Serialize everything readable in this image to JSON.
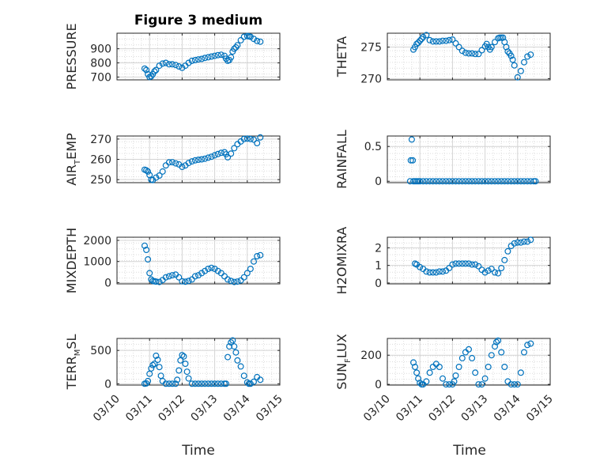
{
  "figure": {
    "title": "Figure 3 medium",
    "marker_color": "#0072bd",
    "xlabel": "Time",
    "x_ticks": [
      "03/10",
      "03/11",
      "03/12",
      "03/13",
      "03/14",
      "03/15"
    ]
  },
  "chart_data": [
    {
      "type": "scatter",
      "ylabel": "PRESSURE",
      "yticks": [
        700,
        800,
        900
      ],
      "ylim": [
        680,
        1010
      ],
      "xlim": [
        10,
        15
      ],
      "grid": true,
      "series": [
        {
          "x": [
            10.85,
            10.9,
            10.95,
            11.0,
            11.05,
            11.1,
            11.15,
            11.2,
            11.3,
            11.4,
            11.5,
            11.6,
            11.7,
            11.8,
            11.9,
            12.0,
            12.1,
            12.2,
            12.3,
            12.4,
            12.5,
            12.6,
            12.7,
            12.8,
            12.9,
            13.0,
            13.1,
            13.2,
            13.3,
            13.35,
            13.4,
            13.45,
            13.5,
            13.55,
            13.6,
            13.65,
            13.7,
            13.8,
            13.9,
            14.0,
            14.05,
            14.1,
            14.2,
            14.3,
            14.4
          ],
          "y": [
            760,
            750,
            720,
            700,
            705,
            720,
            740,
            750,
            780,
            795,
            800,
            790,
            790,
            785,
            775,
            765,
            780,
            800,
            815,
            820,
            825,
            828,
            835,
            840,
            845,
            850,
            855,
            858,
            850,
            830,
            815,
            820,
            840,
            880,
            900,
            910,
            925,
            960,
            985,
            990,
            988,
            985,
            970,
            955,
            950
          ]
        }
      ]
    },
    {
      "type": "scatter",
      "ylabel": "THETA",
      "yticks": [
        270,
        275
      ],
      "ylim": [
        269.8,
        277.2
      ],
      "xlim": [
        10,
        15
      ],
      "grid": true,
      "series": [
        {
          "x": [
            10.8,
            10.85,
            10.9,
            10.95,
            11.0,
            11.05,
            11.1,
            11.2,
            11.3,
            11.4,
            11.5,
            11.6,
            11.7,
            11.8,
            11.9,
            12.0,
            12.1,
            12.2,
            12.3,
            12.4,
            12.5,
            12.6,
            12.7,
            12.8,
            12.9,
            13.0,
            13.05,
            13.1,
            13.15,
            13.2,
            13.3,
            13.4,
            13.45,
            13.5,
            13.55,
            13.6,
            13.65,
            13.7,
            13.75,
            13.8,
            13.85,
            13.9,
            14.0,
            14.1,
            14.2,
            14.3,
            14.4
          ],
          "y": [
            274.6,
            275.0,
            275.5,
            275.7,
            276.0,
            276.3,
            276.6,
            276.9,
            276.1,
            275.9,
            275.9,
            275.9,
            276.0,
            276.0,
            276.1,
            276.2,
            275.6,
            275.0,
            274.4,
            274.1,
            274.0,
            274.0,
            273.9,
            273.9,
            274.5,
            275.1,
            275.5,
            275.0,
            274.6,
            275.0,
            275.8,
            276.4,
            276.5,
            276.5,
            276.5,
            275.8,
            275.0,
            274.3,
            274.0,
            273.6,
            273.0,
            272.1,
            270.2,
            271.2,
            272.6,
            273.5,
            273.8
          ]
        }
      ]
    },
    {
      "type": "scatter",
      "ylabel": "AIR_TEMP",
      "ylabel_main": "AIR",
      "ylabel_sub": "T",
      "ylabel_rest": "EMP",
      "yticks": [
        250,
        260,
        270
      ],
      "ylim": [
        248.5,
        271.5
      ],
      "xlim": [
        10,
        15
      ],
      "grid": true,
      "series": [
        {
          "x": [
            10.85,
            10.9,
            10.95,
            11.0,
            11.05,
            11.1,
            11.2,
            11.3,
            11.4,
            11.5,
            11.6,
            11.7,
            11.8,
            11.9,
            12.0,
            12.1,
            12.2,
            12.3,
            12.4,
            12.5,
            12.6,
            12.7,
            12.8,
            12.9,
            13.0,
            13.1,
            13.2,
            13.3,
            13.35,
            13.4,
            13.5,
            13.6,
            13.7,
            13.8,
            13.9,
            14.0,
            14.1,
            14.2,
            14.3,
            14.4
          ],
          "y": [
            254.9,
            254.6,
            254.0,
            252.3,
            250.0,
            249.8,
            251.0,
            252.0,
            254.0,
            257.0,
            258.5,
            258.6,
            258.0,
            257.5,
            256.3,
            257.0,
            258.2,
            259.0,
            259.5,
            259.8,
            260.0,
            260.3,
            260.8,
            261.3,
            262.0,
            262.6,
            263.2,
            263.5,
            262.5,
            261.0,
            262.8,
            265.5,
            267.5,
            268.8,
            270.0,
            270.2,
            270.0,
            269.7,
            268.0,
            270.8
          ]
        }
      ]
    },
    {
      "type": "scatter",
      "ylabel": "RAINFALL",
      "yticks": [
        0,
        0.5
      ],
      "ytick_labels": [
        "0",
        "0.5"
      ],
      "ylim": [
        -0.02,
        0.65
      ],
      "xlim": [
        10,
        15
      ],
      "grid": true,
      "series": [
        {
          "x": [
            10.7,
            10.72,
            10.75,
            10.78,
            10.8,
            10.85,
            10.9,
            10.95,
            11.0,
            11.1,
            11.2,
            11.3,
            11.4,
            11.5,
            11.6,
            11.7,
            11.8,
            11.9,
            12.0,
            12.1,
            12.2,
            12.3,
            12.4,
            12.5,
            12.6,
            12.7,
            12.8,
            12.9,
            13.0,
            13.1,
            13.2,
            13.3,
            13.4,
            13.5,
            13.6,
            13.7,
            13.8,
            13.9,
            14.0,
            14.1,
            14.2,
            14.3,
            14.4,
            14.5,
            14.55
          ],
          "y": [
            0,
            0.3,
            0.6,
            0.3,
            0,
            0,
            0,
            0,
            0,
            0,
            0,
            0,
            0,
            0,
            0,
            0,
            0,
            0,
            0,
            0,
            0,
            0,
            0,
            0,
            0,
            0,
            0,
            0,
            0,
            0,
            0,
            0,
            0,
            0,
            0,
            0,
            0,
            0,
            0,
            0,
            0,
            0,
            0,
            0,
            0
          ]
        }
      ]
    },
    {
      "type": "scatter",
      "ylabel": "MIXDEPTH",
      "yticks": [
        0,
        1000,
        2000
      ],
      "ylim": [
        -60,
        2150
      ],
      "xlim": [
        10,
        15
      ],
      "grid": true,
      "series": [
        {
          "x": [
            10.85,
            10.9,
            10.95,
            11.0,
            11.05,
            11.1,
            11.15,
            11.2,
            11.3,
            11.4,
            11.5,
            11.6,
            11.7,
            11.8,
            11.9,
            12.0,
            12.1,
            12.2,
            12.3,
            12.4,
            12.5,
            12.6,
            12.7,
            12.8,
            12.9,
            13.0,
            13.1,
            13.2,
            13.3,
            13.4,
            13.5,
            13.6,
            13.7,
            13.8,
            13.9,
            14.0,
            14.1,
            14.2,
            14.3,
            14.4
          ],
          "y": [
            1750,
            1550,
            1100,
            450,
            150,
            80,
            60,
            50,
            30,
            120,
            250,
            300,
            350,
            380,
            250,
            60,
            40,
            80,
            150,
            300,
            350,
            450,
            550,
            650,
            700,
            650,
            550,
            450,
            300,
            150,
            80,
            30,
            50,
            100,
            250,
            450,
            650,
            1000,
            1250,
            1300
          ]
        }
      ]
    },
    {
      "type": "scatter",
      "ylabel": "H2OMIXRA",
      "yticks": [
        0,
        1,
        2
      ],
      "ylim": [
        -0.05,
        2.6
      ],
      "xlim": [
        10,
        15
      ],
      "grid": true,
      "series": [
        {
          "x": [
            10.85,
            10.9,
            11.0,
            11.1,
            11.2,
            11.3,
            11.4,
            11.5,
            11.6,
            11.7,
            11.8,
            11.9,
            12.0,
            12.1,
            12.2,
            12.3,
            12.4,
            12.5,
            12.6,
            12.7,
            12.8,
            12.9,
            13.0,
            13.1,
            13.2,
            13.3,
            13.4,
            13.5,
            13.6,
            13.7,
            13.8,
            13.9,
            14.0,
            14.1,
            14.2,
            14.3,
            14.4
          ],
          "y": [
            1.1,
            1.05,
            0.9,
            0.8,
            0.65,
            0.6,
            0.6,
            0.6,
            0.65,
            0.65,
            0.7,
            0.85,
            1.05,
            1.1,
            1.1,
            1.1,
            1.1,
            1.1,
            1.05,
            1.05,
            0.95,
            0.75,
            0.6,
            0.7,
            0.8,
            0.6,
            0.55,
            0.85,
            1.3,
            1.8,
            2.1,
            2.25,
            2.3,
            2.3,
            2.35,
            2.35,
            2.45
          ]
        }
      ]
    },
    {
      "type": "scatter",
      "ylabel": "TERR_MSL",
      "ylabel_main": "TERR",
      "ylabel_sub": "M",
      "ylabel_rest": "SL",
      "yticks": [
        0,
        500
      ],
      "ylim": [
        -20,
        680
      ],
      "xlim": [
        10,
        15
      ],
      "grid": true,
      "series": [
        {
          "x": [
            10.85,
            10.9,
            10.95,
            11.0,
            11.05,
            11.1,
            11.15,
            11.2,
            11.25,
            11.3,
            11.35,
            11.4,
            11.5,
            11.6,
            11.7,
            11.8,
            11.85,
            11.9,
            11.95,
            12.0,
            12.05,
            12.1,
            12.15,
            12.2,
            12.3,
            12.4,
            12.5,
            12.6,
            12.7,
            12.8,
            12.9,
            13.0,
            13.1,
            13.2,
            13.3,
            13.35,
            13.4,
            13.45,
            13.5,
            13.55,
            13.6,
            13.65,
            13.7,
            13.8,
            13.9,
            14.0,
            14.05,
            14.1,
            14.2,
            14.3,
            14.4
          ],
          "y": [
            0,
            5,
            40,
            150,
            230,
            280,
            300,
            420,
            360,
            250,
            120,
            40,
            0,
            0,
            0,
            0,
            60,
            200,
            350,
            430,
            410,
            300,
            180,
            80,
            0,
            0,
            0,
            0,
            0,
            0,
            0,
            0,
            0,
            0,
            0,
            0,
            400,
            560,
            620,
            650,
            560,
            470,
            350,
            260,
            120,
            20,
            0,
            0,
            30,
            100,
            60
          ]
        }
      ]
    },
    {
      "type": "scatter",
      "ylabel": "SUN_FLUX",
      "ylabel_main": "SUN",
      "ylabel_sub": "F",
      "ylabel_rest": "LUX",
      "yticks": [
        0,
        200
      ],
      "ylim": [
        -5,
        315
      ],
      "xlim": [
        10,
        15
      ],
      "grid": true,
      "series": [
        {
          "x": [
            10.8,
            10.85,
            10.9,
            10.95,
            11.0,
            11.05,
            11.1,
            11.2,
            11.3,
            11.4,
            11.5,
            11.6,
            11.7,
            11.8,
            11.9,
            12.0,
            12.05,
            12.1,
            12.2,
            12.3,
            12.4,
            12.5,
            12.6,
            12.7,
            12.8,
            12.9,
            13.0,
            13.1,
            13.2,
            13.3,
            13.35,
            13.4,
            13.5,
            13.6,
            13.7,
            13.8,
            13.9,
            14.0,
            14.1,
            14.2,
            14.3,
            14.4
          ],
          "y": [
            150,
            120,
            80,
            40,
            10,
            0,
            0,
            20,
            80,
            120,
            140,
            120,
            40,
            0,
            0,
            0,
            20,
            60,
            120,
            180,
            220,
            240,
            180,
            80,
            0,
            0,
            40,
            120,
            200,
            260,
            290,
            300,
            220,
            120,
            20,
            0,
            0,
            0,
            80,
            220,
            270,
            280
          ]
        }
      ]
    }
  ]
}
